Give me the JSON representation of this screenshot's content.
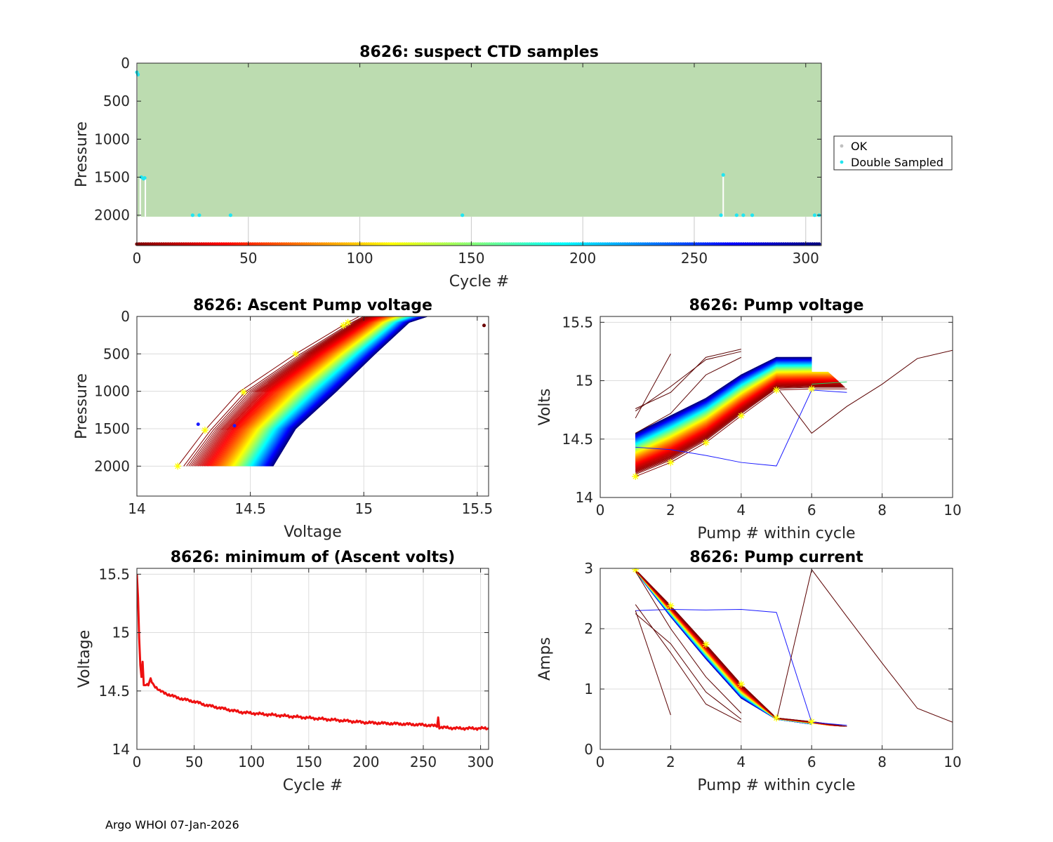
{
  "footer": "Argo WHOI 07-Jan-2026",
  "colors": {
    "ok": "#bcdcb0",
    "ok_marker": "#c0c0c0",
    "double_sampled": "#22e5f0",
    "min_line": "#ee1010",
    "marker_star": "#ffff00",
    "grid": "#dcdcdc"
  },
  "chart_data": [
    {
      "id": "ctd",
      "type": "scatter",
      "title": "8626: suspect CTD samples",
      "xlabel": "Cycle #",
      "ylabel": "Pressure",
      "xlim": [
        0,
        307
      ],
      "ylim": [
        2400,
        0
      ],
      "xticks": [
        0,
        50,
        100,
        150,
        200,
        250,
        300
      ],
      "yticks": [
        0,
        500,
        1000,
        1500,
        2000
      ],
      "grid": false,
      "legend": {
        "placement": "right",
        "entries": [
          "OK",
          "Double Sampled"
        ]
      },
      "ok_region": {
        "x": [
          0,
          307
        ],
        "y_top": 0,
        "y_bottom": 2020
      },
      "double_sampled": [
        {
          "x": 0,
          "y": 120
        },
        {
          "x": 0.5,
          "y": 150
        },
        {
          "x": 2,
          "y": 1500
        },
        {
          "x": 3,
          "y": 1520
        },
        {
          "x": 3.5,
          "y": 1510
        },
        {
          "x": 25,
          "y": 2000
        },
        {
          "x": 28,
          "y": 2000
        },
        {
          "x": 42,
          "y": 2000
        },
        {
          "x": 146,
          "y": 2000
        },
        {
          "x": 262,
          "y": 2000
        },
        {
          "x": 263,
          "y": 1470
        },
        {
          "x": 269,
          "y": 2000
        },
        {
          "x": 272,
          "y": 2000
        },
        {
          "x": 276,
          "y": 2000
        },
        {
          "x": 304,
          "y": 2000
        },
        {
          "x": 306,
          "y": 2000
        }
      ],
      "colorbar_y": 2380
    },
    {
      "id": "ascent",
      "type": "line",
      "title": "8626: Ascent Pump voltage",
      "xlabel": "Voltage",
      "ylabel": "Pressure",
      "xlim": [
        14,
        15.55
      ],
      "ylim": [
        2400,
        0
      ],
      "xticks": [
        14,
        14.5,
        15,
        15.5
      ],
      "yticks": [
        0,
        500,
        1000,
        1500,
        2000
      ],
      "grid": true,
      "series_model": {
        "first_cycle": [
          [
            14.18,
            2000
          ],
          [
            14.3,
            1520
          ],
          [
            14.45,
            1010
          ],
          [
            14.7,
            500
          ],
          [
            14.93,
            80
          ],
          [
            14.98,
            0
          ]
        ],
        "last_cycle": [
          [
            14.6,
            2000
          ],
          [
            14.7,
            1500
          ],
          [
            14.88,
            1000
          ],
          [
            15.05,
            500
          ],
          [
            15.2,
            80
          ],
          [
            15.28,
            0
          ]
        ],
        "n_cycles": 307
      },
      "stars": [
        {
          "x": 14.18,
          "y": 2000
        },
        {
          "x": 14.3,
          "y": 1520
        },
        {
          "x": 14.47,
          "y": 1010
        },
        {
          "x": 14.7,
          "y": 500
        },
        {
          "x": 14.93,
          "y": 80
        },
        {
          "x": 14.91,
          "y": 120
        }
      ],
      "outliers": [
        {
          "x": 15.53,
          "y": 120
        },
        {
          "x": 14.27,
          "y": 1440
        },
        {
          "x": 14.43,
          "y": 1460
        }
      ]
    },
    {
      "id": "pumpv",
      "type": "line",
      "title": "8626: Pump voltage",
      "xlabel": "Pump # within cycle",
      "ylabel": "Volts",
      "xlim": [
        0,
        10
      ],
      "ylim": [
        14,
        15.55
      ],
      "xticks": [
        0,
        2,
        4,
        6,
        8,
        10
      ],
      "yticks": [
        14,
        14.5,
        15,
        15.5
      ],
      "grid": true,
      "series_model": {
        "first_cycle": [
          [
            1,
            14.18
          ],
          [
            2,
            14.3
          ],
          [
            3,
            14.47
          ],
          [
            4,
            14.7
          ],
          [
            5,
            14.92
          ],
          [
            6,
            14.93
          ],
          [
            7,
            14.93
          ]
        ],
        "last_cycle": [
          [
            1,
            14.55
          ],
          [
            2,
            14.7
          ],
          [
            3,
            14.85
          ],
          [
            4,
            15.05
          ],
          [
            5,
            15.2
          ],
          [
            6,
            15.2
          ]
        ],
        "n_cycles": 307
      },
      "stars": [
        {
          "x": 1,
          "y": 14.18
        },
        {
          "x": 2,
          "y": 14.3
        },
        {
          "x": 3,
          "y": 14.47
        },
        {
          "x": 4,
          "y": 14.7
        },
        {
          "x": 5,
          "y": 14.92
        },
        {
          "x": 6,
          "y": 14.93
        }
      ],
      "extra_series": [
        {
          "name": "blue-outlier",
          "color": "#1a1aff",
          "points": [
            [
              1,
              14.43
            ],
            [
              2,
              14.41
            ],
            [
              3,
              14.36
            ],
            [
              4,
              14.3
            ],
            [
              5,
              14.27
            ],
            [
              6,
              14.92
            ],
            [
              7,
              14.9
            ]
          ]
        },
        {
          "name": "long-dark",
          "color": "#5a0000",
          "points": [
            [
              5,
              14.95
            ],
            [
              6,
              14.55
            ],
            [
              7,
              14.78
            ],
            [
              8,
              14.97
            ],
            [
              9,
              15.19
            ],
            [
              10,
              15.26
            ]
          ]
        },
        {
          "name": "dark-a",
          "color": "#5a0000",
          "points": [
            [
              1,
              14.68
            ],
            [
              2,
              15.23
            ]
          ]
        },
        {
          "name": "dark-b",
          "color": "#5a0000",
          "points": [
            [
              1,
              14.76
            ],
            [
              2,
              14.9
            ],
            [
              3,
              15.2
            ],
            [
              4,
              15.27
            ]
          ]
        },
        {
          "name": "dark-c",
          "color": "#5a0000",
          "points": [
            [
              1,
              14.74
            ],
            [
              2,
              14.95
            ],
            [
              3,
              15.18
            ],
            [
              4,
              15.25
            ]
          ]
        },
        {
          "name": "dark-d",
          "color": "#5a0000",
          "points": [
            [
              1,
              14.55
            ],
            [
              2,
              14.72
            ],
            [
              3,
              15.05
            ],
            [
              4,
              15.2
            ]
          ]
        },
        {
          "name": "green-tail",
          "color": "#20d060",
          "points": [
            [
              6,
              14.97
            ],
            [
              7,
              14.99
            ]
          ]
        }
      ]
    },
    {
      "id": "minvolts",
      "type": "line",
      "title": "8626: minimum of (Ascent volts)",
      "xlabel": "Cycle #",
      "ylabel": "Voltage",
      "xlim": [
        0,
        307
      ],
      "ylim": [
        14,
        15.55
      ],
      "xticks": [
        0,
        50,
        100,
        150,
        200,
        250,
        300
      ],
      "yticks": [
        14,
        14.5,
        15,
        15.5
      ],
      "grid": true,
      "anchors": [
        [
          0,
          15.5
        ],
        [
          1,
          15.3
        ],
        [
          2,
          14.95
        ],
        [
          3,
          14.72
        ],
        [
          4,
          14.62
        ],
        [
          5,
          14.75
        ],
        [
          6,
          14.55
        ],
        [
          10,
          14.55
        ],
        [
          12,
          14.6
        ],
        [
          14,
          14.56
        ],
        [
          20,
          14.5
        ],
        [
          30,
          14.46
        ],
        [
          40,
          14.43
        ],
        [
          50,
          14.41
        ],
        [
          60,
          14.38
        ],
        [
          75,
          14.35
        ],
        [
          90,
          14.32
        ],
        [
          100,
          14.31
        ],
        [
          125,
          14.29
        ],
        [
          150,
          14.27
        ],
        [
          175,
          14.25
        ],
        [
          200,
          14.23
        ],
        [
          225,
          14.22
        ],
        [
          250,
          14.21
        ],
        [
          262,
          14.2
        ],
        [
          263,
          14.27
        ],
        [
          264,
          14.19
        ],
        [
          280,
          14.18
        ],
        [
          300,
          14.18
        ],
        [
          307,
          14.18
        ]
      ]
    },
    {
      "id": "pumpc",
      "type": "line",
      "title": "8626: Pump current",
      "xlabel": "Pump # within cycle",
      "ylabel": "Amps",
      "xlim": [
        0,
        10
      ],
      "ylim": [
        0,
        3
      ],
      "xticks": [
        0,
        2,
        4,
        6,
        8,
        10
      ],
      "yticks": [
        0,
        1,
        2,
        3
      ],
      "grid": true,
      "series_model": {
        "first_cycle": [
          [
            1,
            2.98
          ],
          [
            2,
            2.38
          ],
          [
            3,
            1.74
          ],
          [
            4,
            1.08
          ],
          [
            5,
            0.52
          ],
          [
            6,
            0.46
          ],
          [
            7,
            0.38
          ]
        ],
        "last_cycle": [
          [
            1,
            2.95
          ],
          [
            2,
            2.2
          ],
          [
            3,
            1.5
          ],
          [
            4,
            0.85
          ],
          [
            5,
            0.5
          ],
          [
            6,
            0.42
          ]
        ],
        "n_cycles": 307
      },
      "stars": [
        {
          "x": 1,
          "y": 2.98
        },
        {
          "x": 2,
          "y": 2.38
        },
        {
          "x": 3,
          "y": 1.74
        },
        {
          "x": 4,
          "y": 1.08
        },
        {
          "x": 5,
          "y": 0.52
        },
        {
          "x": 6,
          "y": 0.46
        }
      ],
      "extra_series": [
        {
          "name": "blue-outlier",
          "color": "#1a1aff",
          "points": [
            [
              1,
              2.3
            ],
            [
              2,
              2.32
            ],
            [
              3,
              2.31
            ],
            [
              4,
              2.32
            ],
            [
              5,
              2.27
            ],
            [
              6,
              0.45
            ],
            [
              7,
              0.4
            ]
          ]
        },
        {
          "name": "long-dark",
          "color": "#5a0000",
          "points": [
            [
              5,
              0.48
            ],
            [
              6,
              2.98
            ],
            [
              7,
              2.2
            ],
            [
              8,
              1.43
            ],
            [
              9,
              0.68
            ],
            [
              10,
              0.45
            ]
          ]
        },
        {
          "name": "dark-a",
          "color": "#5a0000",
          "points": [
            [
              1,
              2.3
            ],
            [
              2,
              0.57
            ]
          ]
        },
        {
          "name": "dark-b",
          "color": "#5a0000",
          "points": [
            [
              1,
              2.4
            ],
            [
              2,
              1.6
            ],
            [
              3,
              0.75
            ],
            [
              4,
              0.45
            ]
          ]
        },
        {
          "name": "dark-c",
          "color": "#5a0000",
          "points": [
            [
              1,
              2.25
            ],
            [
              2,
              1.75
            ],
            [
              3,
              0.95
            ],
            [
              4,
              0.5
            ]
          ]
        },
        {
          "name": "dark-d",
          "color": "#5a0000",
          "points": [
            [
              1,
              2.95
            ],
            [
              2,
              2.0
            ],
            [
              3,
              1.2
            ],
            [
              4,
              0.6
            ]
          ]
        }
      ]
    }
  ]
}
